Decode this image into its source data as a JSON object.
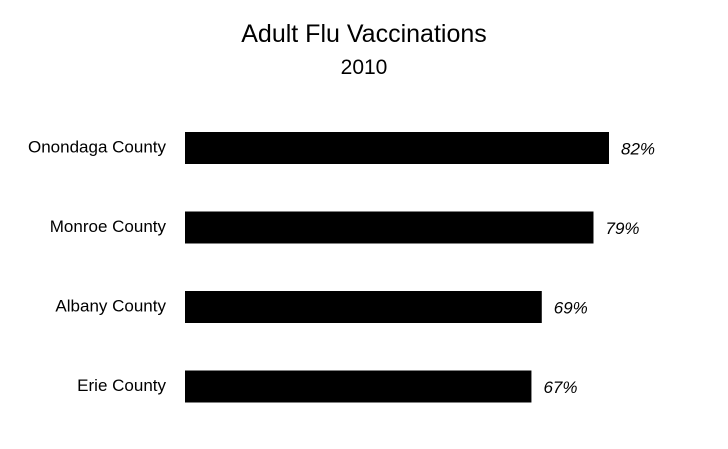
{
  "colors": {
    "bar": "#000000",
    "text": "#000000",
    "background": "#ffffff"
  },
  "chart_data": {
    "type": "bar",
    "orientation": "horizontal",
    "title": "Adult Flu Vaccinations",
    "subtitle": "2010",
    "categories": [
      "Onondaga County",
      "Monroe County",
      "Albany County",
      "Erie County"
    ],
    "values": [
      82,
      79,
      69,
      67
    ],
    "value_labels": [
      "82%",
      "79%",
      "69%",
      "67%"
    ],
    "unit": "%",
    "xlim": [
      0,
      82
    ],
    "grid": false,
    "legend": "none",
    "axes_visible": false
  }
}
